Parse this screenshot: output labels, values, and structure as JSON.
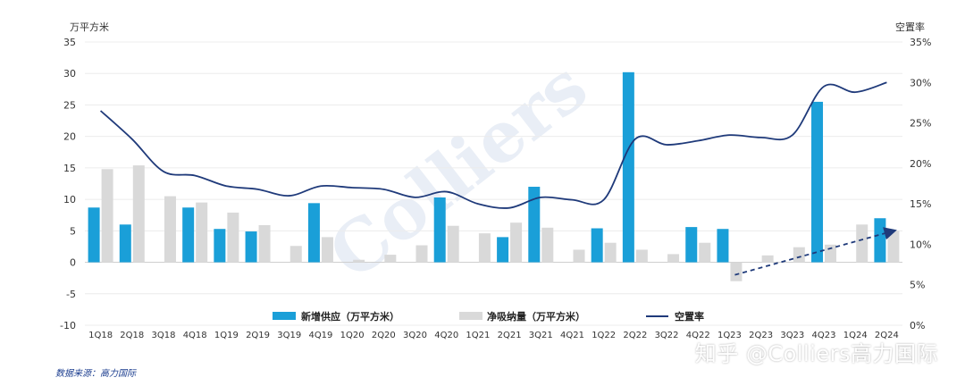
{
  "chart_data": {
    "type": "bar",
    "categories": [
      "1Q18",
      "2Q18",
      "3Q18",
      "4Q18",
      "1Q19",
      "2Q19",
      "3Q19",
      "4Q19",
      "1Q20",
      "2Q20",
      "3Q20",
      "4Q20",
      "1Q21",
      "2Q21",
      "3Q21",
      "4Q21",
      "1Q22",
      "2Q22",
      "3Q22",
      "4Q22",
      "1Q23",
      "2Q23",
      "3Q23",
      "4Q23",
      "1Q24",
      "2Q24"
    ],
    "series": [
      {
        "name": "新增供应（万平方米）",
        "type": "bar",
        "axis": "left",
        "color": "#1a9fd8",
        "values": [
          8.7,
          6.0,
          0,
          8.7,
          5.3,
          4.9,
          0,
          9.4,
          0,
          0,
          0,
          10.3,
          0,
          4.0,
          12.0,
          0,
          5.4,
          30.2,
          0,
          5.6,
          5.3,
          0,
          0,
          25.5,
          0,
          7.0
        ]
      },
      {
        "name": "净吸纳量（万平方米）",
        "type": "bar",
        "axis": "left",
        "color": "#d9d9d9",
        "values": [
          14.8,
          15.4,
          10.5,
          9.5,
          7.9,
          5.9,
          2.6,
          4.0,
          0.4,
          1.2,
          2.7,
          5.8,
          4.6,
          6.3,
          5.5,
          2.0,
          3.1,
          2.0,
          1.3,
          3.1,
          -3.0,
          1.1,
          2.4,
          2.8,
          6.0,
          5.0
        ]
      },
      {
        "name": "空置率",
        "type": "line",
        "axis": "right",
        "color": "#1f3a7a",
        "values": [
          26.5,
          23.0,
          19.0,
          18.5,
          17.2,
          16.8,
          16.0,
          17.2,
          17.0,
          16.8,
          15.8,
          16.5,
          15.0,
          14.5,
          15.8,
          15.5,
          15.5,
          23.0,
          22.3,
          22.8,
          23.5,
          23.2,
          23.5,
          29.5,
          28.8,
          30.0
        ]
      }
    ],
    "yaxis_left": {
      "label": "万平方米",
      "min": -10,
      "max": 35,
      "step": 5,
      "tick_labels": [
        "-10",
        "-5",
        "0",
        "5",
        "10",
        "15",
        "20",
        "25",
        "30",
        "35"
      ]
    },
    "yaxis_right": {
      "label": "空置率",
      "min": 0,
      "max": 35,
      "step": 5,
      "tick_labels": [
        "0%",
        "5%",
        "10%",
        "15%",
        "20%",
        "25%",
        "30%",
        "35%"
      ]
    },
    "legend_position": "bottom-center",
    "grid": true,
    "annotation": {
      "type": "dashed-arrow",
      "from": [
        "1Q23",
        -2.0
      ],
      "to": [
        "2Q24",
        5.0
      ],
      "color": "#1f3a7a"
    },
    "watermark": "Colliers"
  },
  "source_note": "数据来源：高力国际",
  "watermark_text": "知乎 @Colliers高力国际"
}
